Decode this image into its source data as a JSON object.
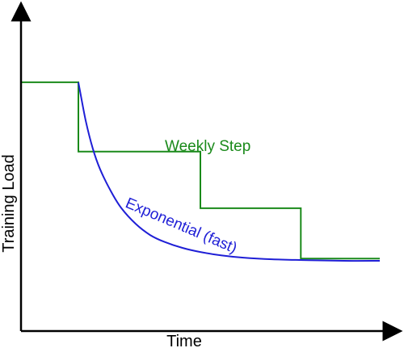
{
  "chart_data": {
    "type": "line",
    "title": "",
    "xlabel": "Time",
    "ylabel": "Training Load",
    "xlim": [
      0,
      100
    ],
    "ylim": [
      0,
      100
    ],
    "grid": false,
    "legend": "none",
    "axis_tick_labels": false,
    "series": [
      {
        "name": "Weekly Step",
        "color": "#1a8a1a",
        "shape": "step",
        "points": [
          [
            0,
            79
          ],
          [
            16,
            79
          ],
          [
            16,
            57
          ],
          [
            50,
            57
          ],
          [
            50,
            39
          ],
          [
            78,
            39
          ],
          [
            78,
            23
          ],
          [
            100,
            23
          ]
        ]
      },
      {
        "name": "Exponential (fast)",
        "color": "#1f1fd6",
        "shape": "curve",
        "points": [
          [
            16,
            79
          ],
          [
            18,
            67
          ],
          [
            20,
            58
          ],
          [
            22,
            51.5
          ],
          [
            25,
            44.5
          ],
          [
            28,
            39
          ],
          [
            32,
            34
          ],
          [
            36,
            30.5
          ],
          [
            40,
            28.3
          ],
          [
            45,
            26.4
          ],
          [
            50,
            25.1
          ],
          [
            56,
            24
          ],
          [
            62,
            23.3
          ],
          [
            70,
            22.8
          ],
          [
            80,
            22.5
          ],
          [
            90,
            22.3
          ],
          [
            100,
            22.3
          ]
        ]
      }
    ]
  }
}
